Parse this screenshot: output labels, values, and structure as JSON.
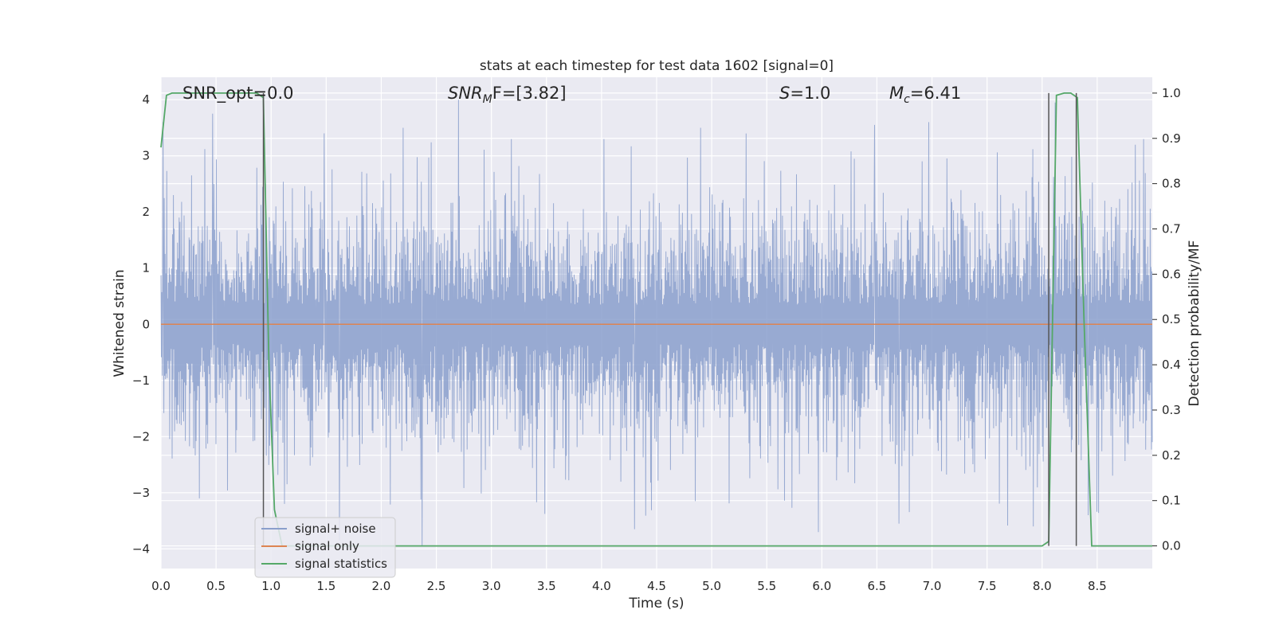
{
  "chart_data": {
    "type": "line",
    "title": "stats at each timestep for test data 1602 [signal=0]",
    "xlabel": "Time (s)",
    "ylabel": "Whitened strain",
    "y2label": "Detection probability/MF",
    "xlim": [
      0.0,
      9.0
    ],
    "ylim": [
      -4.35,
      4.4
    ],
    "y2lim": [
      -0.05,
      1.035
    ],
    "xticks": [
      "0.0",
      "0.5",
      "1.0",
      "1.5",
      "2.0",
      "2.5",
      "3.0",
      "3.5",
      "4.0",
      "4.5",
      "5.0",
      "5.5",
      "6.0",
      "6.5",
      "7.0",
      "7.5",
      "8.0",
      "8.5"
    ],
    "yticks": [
      "4",
      "3",
      "2",
      "1",
      "0",
      "−1",
      "−2",
      "−3",
      "−4"
    ],
    "y2ticks": [
      "1.0",
      "0.9",
      "0.8",
      "0.7",
      "0.6",
      "0.5",
      "0.4",
      "0.3",
      "0.2",
      "0.1",
      "0.0"
    ],
    "annotations": {
      "snr_opt": "SNR_opt=0.0",
      "snr_mf_base": "SNR",
      "snr_mf_sub": "M",
      "snr_mf_rest": "F=[3.82]",
      "s_var": "S",
      "s_rest": "=1.0",
      "mc_base": "M",
      "mc_sub": "c",
      "mc_rest": "=6.41"
    },
    "series": [
      {
        "name": "signal+ noise",
        "color": "#8a9fcc",
        "style": "dense noise trace",
        "amplitude_typical": 1.6,
        "peaks": [
          [
            0.02,
            3.6
          ],
          [
            0.47,
            3.75
          ],
          [
            0.95,
            2.5
          ],
          [
            1.48,
            3.4
          ],
          [
            2.2,
            3.5
          ],
          [
            2.7,
            4.0
          ],
          [
            3.18,
            3.3
          ],
          [
            4.02,
            3.3
          ],
          [
            4.9,
            3.5
          ],
          [
            6.48,
            3.55
          ],
          [
            6.97,
            3.6
          ],
          [
            8.12,
            3.95
          ],
          [
            8.92,
            3.3
          ]
        ],
        "troughs": [
          [
            0.35,
            -3.1
          ],
          [
            1.12,
            -3.2
          ],
          [
            1.62,
            -3.85
          ],
          [
            2.37,
            -3.95
          ],
          [
            4.3,
            -3.65
          ],
          [
            4.85,
            -3.15
          ],
          [
            5.97,
            -3.7
          ],
          [
            6.7,
            -3.55
          ],
          [
            7.92,
            -3.6
          ],
          [
            8.42,
            -3.4
          ]
        ]
      },
      {
        "name": "signal only",
        "color": "#dd8452",
        "x": [
          0.0,
          9.0
        ],
        "y": [
          0.0,
          0.0
        ]
      },
      {
        "name": "signal statistics",
        "color": "#55a868",
        "axis": "right",
        "x": [
          0.0,
          0.05,
          0.1,
          0.2,
          0.3,
          0.4,
          0.5,
          0.6,
          0.7,
          0.8,
          0.87,
          0.93,
          0.98,
          1.03,
          1.1,
          1.5,
          2.0,
          3.0,
          4.0,
          5.0,
          6.0,
          7.0,
          7.5,
          8.0,
          8.06,
          8.13,
          8.2,
          8.26,
          8.32,
          8.38,
          8.45,
          8.5,
          9.0
        ],
        "y": [
          0.88,
          0.995,
          1.0,
          1.0,
          1.0,
          1.0,
          1.0,
          1.0,
          1.0,
          1.0,
          1.0,
          0.99,
          0.4,
          0.08,
          0.0,
          0.0,
          0.0,
          0.0,
          0.0,
          0.0,
          0.0,
          0.0,
          0.0,
          0.0,
          0.01,
          0.995,
          1.0,
          1.0,
          0.99,
          0.5,
          0.0,
          0.0,
          0.0
        ]
      }
    ],
    "vertical_lines": [
      0.93,
      8.06,
      8.31
    ],
    "grid": true,
    "legend_position": "lower-left"
  }
}
